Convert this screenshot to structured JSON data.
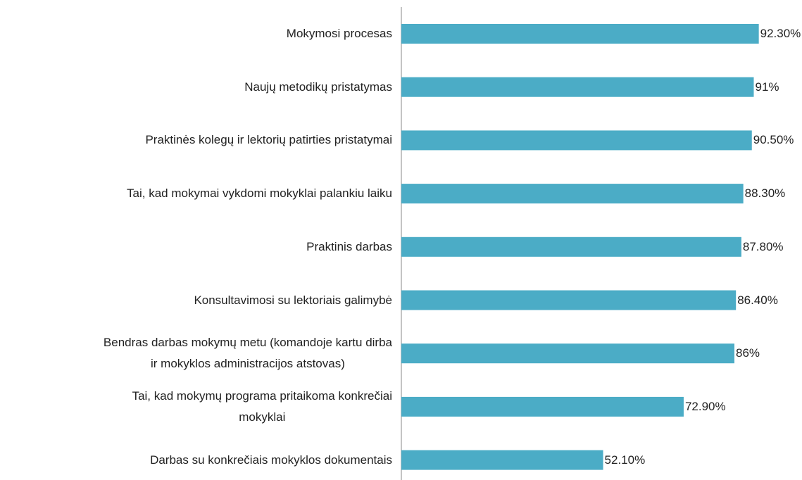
{
  "chart_data": {
    "type": "bar",
    "orientation": "horizontal",
    "categories": [
      "Mokymosi procesas",
      "Naujų metodikų pristatymas",
      "Praktinės kolegų ir lektorių patirties pristatymai",
      "Tai, kad mokymai vykdomi mokyklai palankiu laiku",
      "Praktinis darbas",
      "Konsultavimosi su lektoriais galimybė",
      "Bendras darbas mokymų metu (komandoje kartu dirba\nir mokyklos administracijos atstovas)",
      "Tai, kad mokymų programa pritaikoma konkrečiai\nmokyklai",
      "Darbas su konkrečiais mokyklos dokumentais"
    ],
    "values": [
      92.3,
      91,
      90.5,
      88.3,
      87.8,
      86.4,
      86,
      72.9,
      52.1
    ],
    "value_labels": [
      "92.30%",
      "91%",
      "90.50%",
      "88.30%",
      "87.80%",
      "86.40%",
      "86%",
      "72.90%",
      "52.10%"
    ],
    "color": "#4bacc6",
    "xlim": [
      0,
      100
    ]
  }
}
